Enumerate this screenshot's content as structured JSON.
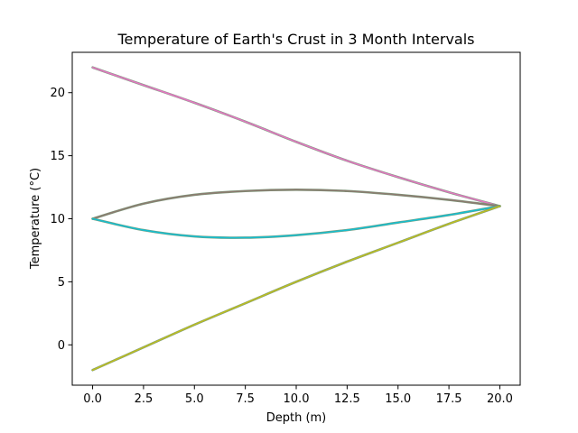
{
  "chart_data": {
    "type": "line",
    "title": "Temperature of Earth's Crust in 3 Month Intervals",
    "xlabel": "Depth (m)",
    "ylabel": "Temperature (°C)",
    "xlim": [
      -1,
      21
    ],
    "ylim": [
      -3.2,
      23.2
    ],
    "xticks": [
      0,
      2.5,
      5,
      7.5,
      10,
      12.5,
      15,
      17.5,
      20
    ],
    "xtick_labels": [
      "0.0",
      "2.5",
      "5.0",
      "7.5",
      "10.0",
      "12.5",
      "15.0",
      "17.5",
      "20.0"
    ],
    "yticks": [
      0,
      5,
      10,
      15,
      20
    ],
    "ytick_labels": [
      "0",
      "5",
      "10",
      "15",
      "20"
    ],
    "grid": false,
    "legend": "none",
    "series": [
      {
        "color": "#e377c2",
        "x": [
          0,
          2.5,
          5,
          7.5,
          10,
          12.5,
          15,
          17.5,
          20
        ],
        "y": [
          22,
          20.6,
          19.2,
          17.7,
          16.1,
          14.6,
          13.3,
          12.1,
          11
        ]
      },
      {
        "color": "#8c7b70",
        "x": [
          0,
          2.5,
          5,
          7.5,
          10,
          12.5,
          15,
          17.5,
          20
        ],
        "y": [
          10,
          11.2,
          11.9,
          12.2,
          12.3,
          12.2,
          11.9,
          11.5,
          11
        ]
      },
      {
        "color": "#17becf",
        "x": [
          0,
          2.5,
          5,
          7.5,
          10,
          12.5,
          15,
          17.5,
          20
        ],
        "y": [
          10,
          9.1,
          8.6,
          8.5,
          8.7,
          9.1,
          9.7,
          10.3,
          11
        ]
      },
      {
        "color": "#bcbd22",
        "x": [
          0,
          2.5,
          5,
          7.5,
          10,
          12.5,
          15,
          17.5,
          20
        ],
        "y": [
          -2,
          -0.2,
          1.6,
          3.3,
          5,
          6.6,
          8.1,
          9.6,
          11
        ]
      }
    ],
    "series_stroke_outline": "#7a9a7a"
  }
}
